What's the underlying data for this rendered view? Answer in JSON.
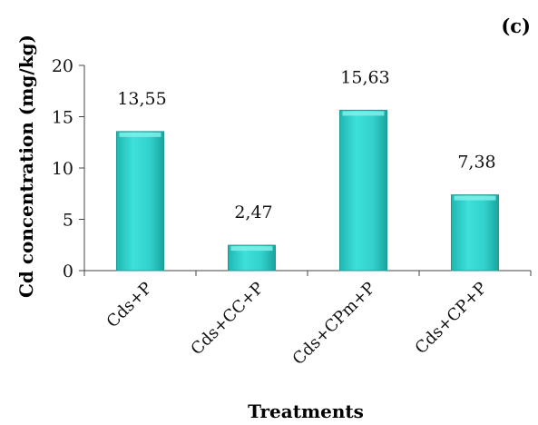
{
  "panel_label": "(c)",
  "colors": {
    "bar_fill": "#35d6d0",
    "bar_top": "#7ff0ea",
    "bar_edge": "#1e9a95",
    "axis": "#444444"
  },
  "chart_data": {
    "type": "bar",
    "categories": [
      "Cds+P",
      "Cds+CC+P",
      "Cds+CPm+P",
      "Cds+CP+P"
    ],
    "values": [
      13.55,
      2.47,
      15.63,
      7.38
    ],
    "data_labels": [
      "13,55",
      "2,47",
      "15,63",
      "7,38"
    ],
    "xlabel": "Treatments",
    "ylabel": "Cd concentration (mg/kg)",
    "ylim": [
      0,
      20
    ],
    "yticks": [
      0,
      5,
      10,
      15,
      20
    ],
    "grid": false,
    "legend": "none"
  }
}
